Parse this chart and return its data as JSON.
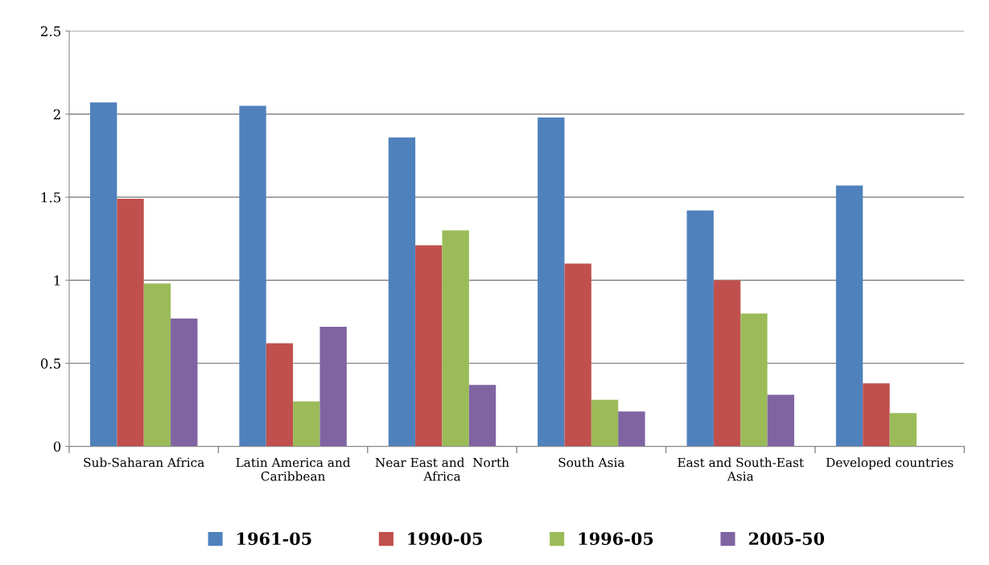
{
  "chart_data": {
    "type": "bar",
    "categories": [
      "Sub-Saharan Africa",
      "Latin America and\nCaribbean",
      "Near East and  North\nAfrica",
      "South Asia",
      "East and South-East\nAsia",
      "Developed countries"
    ],
    "series": [
      {
        "name": "1961-05",
        "color": "#4f81bd",
        "values": [
          2.07,
          2.05,
          1.86,
          1.98,
          1.42,
          1.57
        ]
      },
      {
        "name": "1990-05",
        "color": "#c0504d",
        "values": [
          1.49,
          0.62,
          1.21,
          1.1,
          1.0,
          0.38
        ]
      },
      {
        "name": "1996-05",
        "color": "#9bbb59",
        "values": [
          0.98,
          0.27,
          1.3,
          0.28,
          0.8,
          0.2
        ]
      },
      {
        "name": "2005-50",
        "color": "#8064a2",
        "values": [
          0.77,
          0.72,
          0.37,
          0.21,
          0.31,
          null
        ]
      }
    ],
    "ylim": [
      0,
      2.5
    ],
    "yticks": [
      0,
      0.5,
      1,
      1.5,
      2,
      2.5
    ],
    "grid": "y",
    "legend": "bottom"
  }
}
